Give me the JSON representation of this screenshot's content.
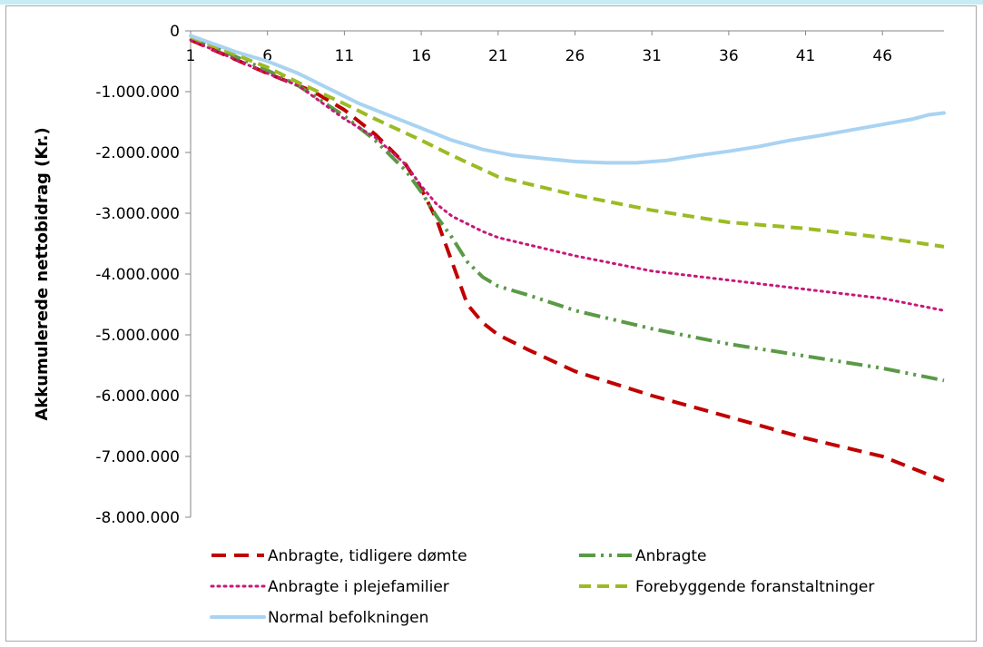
{
  "chart_data": {
    "type": "line",
    "title": "",
    "xlabel": "",
    "ylabel": "Akkumulerede nettobidrag (Kr.)",
    "ylim": [
      -8000000,
      0
    ],
    "xlim": [
      1,
      50
    ],
    "y_ticks": [
      0,
      -1000000,
      -2000000,
      -3000000,
      -4000000,
      -5000000,
      -6000000,
      -7000000,
      -8000000
    ],
    "y_tick_labels": [
      "0",
      "-1.000.000",
      "-2.000.000",
      "-3.000.000",
      "-4.000.000",
      "-5.000.000",
      "-6.000.000",
      "-7.000.000",
      "-8.000.000"
    ],
    "x_ticks": [
      1,
      6,
      11,
      16,
      21,
      26,
      31,
      36,
      41,
      46
    ],
    "x_tick_labels": [
      "1",
      "6",
      "11",
      "16",
      "21",
      "26",
      "31",
      "36",
      "41",
      "46"
    ],
    "grid": false,
    "legend_position": "bottom",
    "series": [
      {
        "name": "Anbragte, tidligere dømte",
        "color": "#c00000",
        "dash": "long-dash",
        "points": [
          [
            1,
            -150000
          ],
          [
            6,
            -700000
          ],
          [
            9,
            -1000000
          ],
          [
            11,
            -1300000
          ],
          [
            13,
            -1700000
          ],
          [
            15,
            -2200000
          ],
          [
            16,
            -2600000
          ],
          [
            17,
            -3100000
          ],
          [
            18,
            -3800000
          ],
          [
            19,
            -4500000
          ],
          [
            20,
            -4800000
          ],
          [
            21,
            -5000000
          ],
          [
            23,
            -5250000
          ],
          [
            26,
            -5600000
          ],
          [
            31,
            -6000000
          ],
          [
            36,
            -6350000
          ],
          [
            41,
            -6700000
          ],
          [
            46,
            -7000000
          ],
          [
            50,
            -7400000
          ]
        ]
      },
      {
        "name": "Anbragte",
        "color": "#5a9a46",
        "dash": "dash-dot-dot",
        "points": [
          [
            1,
            -100000
          ],
          [
            6,
            -650000
          ],
          [
            8,
            -900000
          ],
          [
            11,
            -1400000
          ],
          [
            13,
            -1800000
          ],
          [
            15,
            -2300000
          ],
          [
            16,
            -2650000
          ],
          [
            17,
            -3050000
          ],
          [
            18,
            -3400000
          ],
          [
            19,
            -3800000
          ],
          [
            20,
            -4050000
          ],
          [
            21,
            -4200000
          ],
          [
            23,
            -4350000
          ],
          [
            26,
            -4600000
          ],
          [
            31,
            -4900000
          ],
          [
            36,
            -5150000
          ],
          [
            41,
            -5350000
          ],
          [
            46,
            -5550000
          ],
          [
            50,
            -5750000
          ]
        ]
      },
      {
        "name": "Anbragte i plejefamilier",
        "color": "#c6187a",
        "dash": "dotted",
        "points": [
          [
            1,
            -150000
          ],
          [
            6,
            -700000
          ],
          [
            8,
            -900000
          ],
          [
            11,
            -1450000
          ],
          [
            13,
            -1750000
          ],
          [
            15,
            -2200000
          ],
          [
            16,
            -2550000
          ],
          [
            17,
            -2850000
          ],
          [
            18,
            -3050000
          ],
          [
            20,
            -3300000
          ],
          [
            21,
            -3400000
          ],
          [
            26,
            -3700000
          ],
          [
            31,
            -3950000
          ],
          [
            36,
            -4100000
          ],
          [
            41,
            -4250000
          ],
          [
            46,
            -4400000
          ],
          [
            50,
            -4600000
          ]
        ]
      },
      {
        "name": "Forebyggende foranstaltninger",
        "color": "#9bbb22",
        "dash": "medium-dash",
        "points": [
          [
            1,
            -100000
          ],
          [
            6,
            -600000
          ],
          [
            8,
            -850000
          ],
          [
            11,
            -1200000
          ],
          [
            13,
            -1450000
          ],
          [
            16,
            -1800000
          ],
          [
            18,
            -2050000
          ],
          [
            21,
            -2400000
          ],
          [
            26,
            -2700000
          ],
          [
            31,
            -2950000
          ],
          [
            36,
            -3150000
          ],
          [
            41,
            -3250000
          ],
          [
            46,
            -3400000
          ],
          [
            50,
            -3550000
          ]
        ]
      },
      {
        "name": "Normal befolkningen",
        "color": "#a9d3f2",
        "dash": "solid",
        "points": [
          [
            1,
            -80000
          ],
          [
            4,
            -350000
          ],
          [
            6,
            -500000
          ],
          [
            8,
            -700000
          ],
          [
            10,
            -950000
          ],
          [
            12,
            -1200000
          ],
          [
            14,
            -1400000
          ],
          [
            16,
            -1600000
          ],
          [
            18,
            -1800000
          ],
          [
            20,
            -1950000
          ],
          [
            22,
            -2050000
          ],
          [
            24,
            -2100000
          ],
          [
            26,
            -2150000
          ],
          [
            28,
            -2170000
          ],
          [
            30,
            -2170000
          ],
          [
            32,
            -2130000
          ],
          [
            34,
            -2050000
          ],
          [
            36,
            -1980000
          ],
          [
            38,
            -1900000
          ],
          [
            40,
            -1800000
          ],
          [
            42,
            -1720000
          ],
          [
            44,
            -1630000
          ],
          [
            46,
            -1540000
          ],
          [
            48,
            -1450000
          ],
          [
            49,
            -1380000
          ],
          [
            50,
            -1350000
          ]
        ]
      }
    ]
  }
}
